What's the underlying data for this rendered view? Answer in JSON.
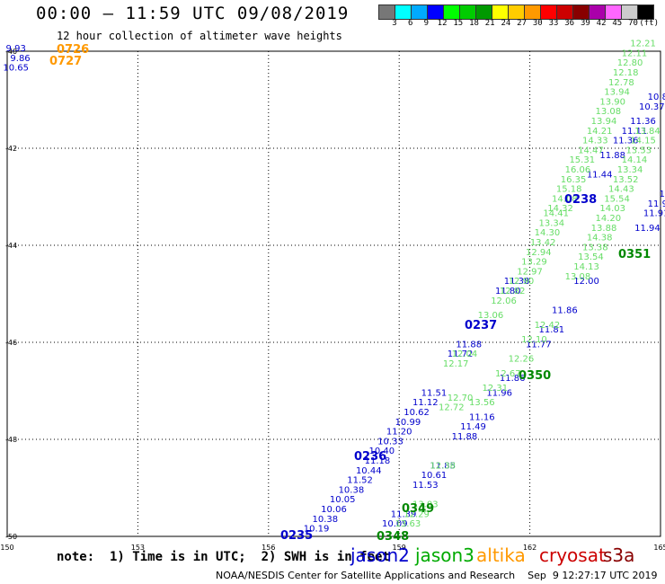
{
  "header": {
    "title": "00:00 – 11:59 UTC 09/08/2019",
    "subtitle": "12 hour collection of altimeter wave heights"
  },
  "color_scale": {
    "colors": [
      "#777777",
      "#00ffff",
      "#00aaff",
      "#0000ff",
      "#00ff00",
      "#00cc00",
      "#009900",
      "#ffff00",
      "#ffcc00",
      "#ff9900",
      "#ff0000",
      "#cc0000",
      "#880000",
      "#aa00aa",
      "#ff66ff",
      "#cccccc",
      "#000000"
    ],
    "labels": [
      "3",
      "6",
      "9",
      "12",
      "15",
      "18",
      "21",
      "24",
      "27",
      "30",
      "33",
      "36",
      "39",
      "42",
      "45",
      "70",
      "(ft)"
    ]
  },
  "axes": {
    "lat_labels": [
      "-40",
      "-42",
      "-44",
      "-46",
      "-48",
      "-50"
    ],
    "lon_labels": [
      "150",
      "153",
      "156",
      "159",
      "162",
      "165"
    ]
  },
  "passes": [
    {
      "name": "0726",
      "color": "#ff9900"
    },
    {
      "name": "0727",
      "color": "#ff9900"
    },
    {
      "name": "0235",
      "color": "#0000cc"
    },
    {
      "name": "0236",
      "color": "#0000cc"
    },
    {
      "name": "0237",
      "color": "#0000cc"
    },
    {
      "name": "0238",
      "color": "#0000cc"
    },
    {
      "name": "0348",
      "color": "#008800"
    },
    {
      "name": "0349",
      "color": "#008800"
    },
    {
      "name": "0350",
      "color": "#008800"
    },
    {
      "name": "0351",
      "color": "#008800"
    }
  ],
  "chart_data": {
    "type": "scatter",
    "xlim": [
      150,
      165
    ],
    "ylim": [
      -50,
      -40
    ],
    "grid": true,
    "series": [
      {
        "name": "jason2",
        "color": "#0000cc",
        "points": [
          [
            157.1,
            -49.9,
            "10.19"
          ],
          [
            157.3,
            -49.7,
            "10.38"
          ],
          [
            157.5,
            -49.5,
            "10.06"
          ],
          [
            157.7,
            -49.3,
            "10.05"
          ],
          [
            157.9,
            -49.1,
            "10.38"
          ],
          [
            158.1,
            -48.9,
            "11.52"
          ],
          [
            158.3,
            -48.7,
            "10.44"
          ],
          [
            158.5,
            -48.5,
            "11.18"
          ],
          [
            158.6,
            -48.3,
            "10.40"
          ],
          [
            158.8,
            -48.1,
            "10.33"
          ],
          [
            159.0,
            -47.9,
            "11.20"
          ],
          [
            159.2,
            -47.7,
            "10.99"
          ],
          [
            159.4,
            -47.5,
            "10.62"
          ],
          [
            159.6,
            -47.3,
            "11.12"
          ],
          [
            159.8,
            -47.1,
            "11.51"
          ],
          [
            160.4,
            -46.3,
            "11.72"
          ],
          [
            160.6,
            -46.1,
            "11.88"
          ],
          [
            161.5,
            -45.0,
            "11.80"
          ],
          [
            161.7,
            -44.8,
            "11.38"
          ],
          [
            158.9,
            -49.8,
            "10.09"
          ],
          [
            159.1,
            -49.6,
            "11.39"
          ],
          [
            159.6,
            -49.0,
            "11.53"
          ],
          [
            159.8,
            -48.8,
            "10.61"
          ],
          [
            160.0,
            -48.6,
            "11.85"
          ],
          [
            160.5,
            -48.0,
            "11.88"
          ],
          [
            160.7,
            -47.8,
            "11.49"
          ],
          [
            160.9,
            -47.6,
            "11.16"
          ],
          [
            161.3,
            -47.1,
            "11.96"
          ],
          [
            161.6,
            -46.8,
            "11.86"
          ],
          [
            162.2,
            -46.1,
            "11.77"
          ],
          [
            162.5,
            -45.8,
            "11.81"
          ],
          [
            162.8,
            -45.4,
            "11.86"
          ],
          [
            163.3,
            -44.8,
            "12.00"
          ],
          [
            163.6,
            -42.6,
            "11.44"
          ],
          [
            163.9,
            -42.2,
            "11.88"
          ],
          [
            164.2,
            -41.9,
            "11.36"
          ],
          [
            164.4,
            -41.7,
            "11.11"
          ],
          [
            164.6,
            -41.5,
            "11.36"
          ],
          [
            164.8,
            -41.2,
            "10.37"
          ],
          [
            165.0,
            -41.0,
            "10.87"
          ],
          [
            164.7,
            -43.7,
            "11.94"
          ],
          [
            164.9,
            -43.4,
            "11.91"
          ],
          [
            165.0,
            -43.2,
            "11.90"
          ],
          [
            165.2,
            -43.0,
            "11.2"
          ],
          [
            150.2,
            -40.0,
            "9.93"
          ],
          [
            150.3,
            -40.2,
            "9.86"
          ],
          [
            150.2,
            -40.4,
            "10.65"
          ]
        ]
      },
      {
        "name": "jason3",
        "color": "#66dd66",
        "points": [
          [
            160.3,
            -46.5,
            "12.17"
          ],
          [
            160.5,
            -46.3,
            "12.04"
          ],
          [
            161.1,
            -45.5,
            "13.06"
          ],
          [
            161.4,
            -45.2,
            "12.06"
          ],
          [
            161.6,
            -45.0,
            "12.82"
          ],
          [
            161.8,
            -44.8,
            "12.90"
          ],
          [
            162.0,
            -44.6,
            "12.97"
          ],
          [
            162.1,
            -44.4,
            "13.29"
          ],
          [
            162.2,
            -44.2,
            "12.94"
          ],
          [
            162.3,
            -44.0,
            "13.42"
          ],
          [
            162.4,
            -43.8,
            "14.30"
          ],
          [
            162.5,
            -43.6,
            "13.34"
          ],
          [
            162.6,
            -43.4,
            "14.41"
          ],
          [
            162.7,
            -43.3,
            "14.32"
          ],
          [
            162.8,
            -43.1,
            "14.08"
          ],
          [
            162.9,
            -42.9,
            "15.18"
          ],
          [
            163.0,
            -42.7,
            "16.35"
          ],
          [
            163.1,
            -42.5,
            "16.06"
          ],
          [
            163.2,
            -42.3,
            "15.31"
          ],
          [
            163.4,
            -42.1,
            "14.47"
          ],
          [
            163.5,
            -41.9,
            "14.33"
          ],
          [
            163.6,
            -41.7,
            "14.21"
          ],
          [
            163.7,
            -41.5,
            "13.94"
          ],
          [
            163.8,
            -41.3,
            "13.08"
          ],
          [
            163.9,
            -41.1,
            "13.90"
          ],
          [
            164.0,
            -40.9,
            "13.94"
          ],
          [
            164.1,
            -40.7,
            "12.78"
          ],
          [
            164.2,
            -40.5,
            "12.18"
          ],
          [
            164.3,
            -40.3,
            "12.80"
          ],
          [
            164.4,
            -40.1,
            "12.11"
          ],
          [
            164.6,
            -39.9,
            "12.21"
          ],
          [
            160.2,
            -47.4,
            "12.72"
          ],
          [
            160.4,
            -47.2,
            "12.70"
          ],
          [
            159.2,
            -49.8,
            "13.63"
          ],
          [
            159.4,
            -49.6,
            "12.29"
          ],
          [
            159.6,
            -49.4,
            "13.03"
          ],
          [
            160.0,
            -48.6,
            "12.38"
          ],
          [
            160.9,
            -47.3,
            "13.56"
          ],
          [
            161.2,
            -47.0,
            "12.31"
          ],
          [
            161.5,
            -46.7,
            "12.67"
          ],
          [
            161.8,
            -46.4,
            "12.26"
          ],
          [
            162.1,
            -46.0,
            "12.10"
          ],
          [
            162.4,
            -45.7,
            "12.42"
          ],
          [
            163.1,
            -44.7,
            "13.08"
          ],
          [
            163.3,
            -44.5,
            "14.13"
          ],
          [
            163.4,
            -44.3,
            "13.54"
          ],
          [
            163.5,
            -44.1,
            "13.38"
          ],
          [
            163.6,
            -43.9,
            "14.38"
          ],
          [
            163.7,
            -43.7,
            "13.88"
          ],
          [
            163.8,
            -43.5,
            "14.20"
          ],
          [
            163.9,
            -43.3,
            "14.03"
          ],
          [
            164.0,
            -43.1,
            "15.54"
          ],
          [
            164.1,
            -42.9,
            "14.43"
          ],
          [
            164.2,
            -42.7,
            "13.52"
          ],
          [
            164.3,
            -42.5,
            "13.34"
          ],
          [
            164.4,
            -42.3,
            "14.14"
          ],
          [
            164.5,
            -42.1,
            "13.53"
          ],
          [
            164.6,
            -41.9,
            "14.15"
          ],
          [
            164.7,
            -41.7,
            "13.84"
          ]
        ]
      }
    ]
  },
  "footer": {
    "note": "note:  1) Time is in UTC;  2) SWH is in feet",
    "satellites": [
      {
        "name": "jason2",
        "color": "#0000cc"
      },
      {
        "name": "jason3",
        "color": "#00aa00"
      },
      {
        "name": "altika",
        "color": "#ff9900"
      },
      {
        "name": "cryosat",
        "color": "#cc0000"
      },
      {
        "name": "s3a",
        "color": "#880000"
      }
    ],
    "credit": "NOAA/NESDIS Center for Satellite Applications and Research    Sep  9 12:27:17 UTC 2019"
  }
}
